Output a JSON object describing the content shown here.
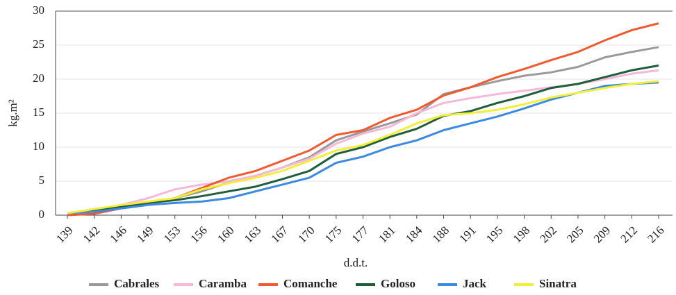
{
  "chart_data": {
    "type": "line",
    "x_label": "d.d.t.",
    "y_label": "kg.m²",
    "categories": [
      "139",
      "142",
      "146",
      "149",
      "153",
      "156",
      "160",
      "163",
      "167",
      "170",
      "175",
      "177",
      "181",
      "184",
      "188",
      "191",
      "195",
      "198",
      "202",
      "205",
      "209",
      "212",
      "216"
    ],
    "series": [
      {
        "name": "Cabrales",
        "color": "#9a9a9a",
        "values": [
          0.3,
          0.6,
          1.2,
          1.8,
          2.5,
          3.5,
          4.8,
          5.8,
          7.0,
          8.5,
          11.0,
          12.3,
          13.5,
          14.8,
          17.8,
          18.8,
          19.7,
          20.5,
          21.0,
          21.8,
          23.2,
          24.0,
          24.7
        ]
      },
      {
        "name": "Caramba",
        "color": "#f5b8d8",
        "values": [
          0.3,
          0.8,
          1.5,
          2.5,
          3.8,
          4.5,
          5.0,
          5.8,
          7.0,
          8.3,
          10.5,
          12.0,
          13.0,
          15.0,
          16.5,
          17.2,
          17.8,
          18.3,
          18.8,
          19.3,
          20.0,
          20.8,
          21.3
        ]
      },
      {
        "name": "Comanche",
        "color": "#ef5a30",
        "values": [
          0,
          0.2,
          1.0,
          1.8,
          2.5,
          4.0,
          5.5,
          6.5,
          8.0,
          9.5,
          11.8,
          12.5,
          14.3,
          15.5,
          17.6,
          18.8,
          20.3,
          21.5,
          22.8,
          24.0,
          25.7,
          27.2,
          28.2
        ]
      },
      {
        "name": "Goloso",
        "color": "#1f5e3b",
        "values": [
          0.3,
          0.7,
          1.2,
          1.8,
          2.2,
          2.8,
          3.5,
          4.2,
          5.3,
          6.5,
          9.0,
          10.0,
          11.5,
          12.7,
          14.6,
          15.3,
          16.5,
          17.5,
          18.7,
          19.3,
          20.3,
          21.3,
          22.0
        ]
      },
      {
        "name": "Jack",
        "color": "#3c8ae0",
        "values": [
          0.3,
          0.5,
          1.0,
          1.5,
          1.8,
          2.0,
          2.5,
          3.5,
          4.5,
          5.5,
          7.7,
          8.6,
          10.0,
          11.0,
          12.5,
          13.5,
          14.5,
          15.7,
          17.0,
          18.0,
          19.0,
          19.3,
          19.5
        ]
      },
      {
        "name": "Sinatra",
        "color": "#f2ee3a",
        "values": [
          0.3,
          0.9,
          1.5,
          2.0,
          2.5,
          3.8,
          4.7,
          5.5,
          6.5,
          8.0,
          9.5,
          10.3,
          11.8,
          13.5,
          14.7,
          15.0,
          15.5,
          16.3,
          17.3,
          18.0,
          18.7,
          19.3,
          19.7
        ]
      }
    ],
    "ylim": [
      0,
      30
    ],
    "yticks": [
      0,
      5,
      10,
      15,
      20,
      25,
      30
    ],
    "grid": true
  }
}
